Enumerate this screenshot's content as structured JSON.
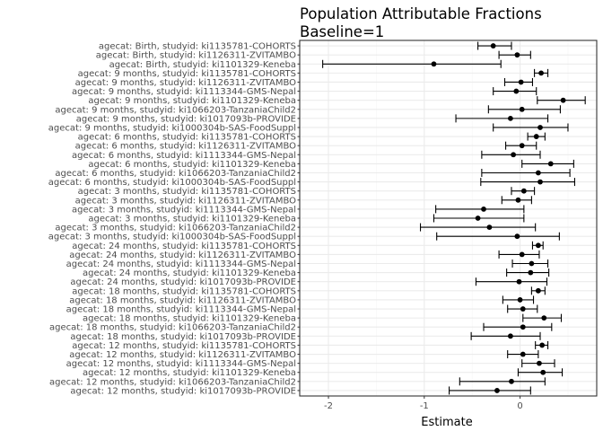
{
  "chart_data": {
    "type": "scatter",
    "style": "forest-plot with horizontal confidence intervals",
    "title": "Population Attributable Fractions",
    "subtitle": "Baseline=1",
    "xlabel": "Estimate",
    "ylabel": "",
    "xlim": [
      -2.3,
      0.8
    ],
    "xticks": [
      -2,
      -1,
      0
    ],
    "grid": true,
    "colors": {
      "point": "#000000",
      "panel_border": "#333333",
      "grid_major": "#ebebeb",
      "grid_minor": "#f5f5f5"
    },
    "rows": [
      {
        "label": "agecat: Birth, studyid: ki1135781-COHORTS",
        "est": -0.28,
        "lo": -0.44,
        "hi": -0.09
      },
      {
        "label": "agecat: Birth, studyid: ki1126311-ZVITAMBO",
        "est": -0.03,
        "lo": -0.22,
        "hi": 0.11
      },
      {
        "label": "agecat: Birth, studyid: ki1101329-Keneba",
        "est": -0.9,
        "lo": -2.06,
        "hi": -0.2
      },
      {
        "label": "agecat: 9 months, studyid: ki1135781-COHORTS",
        "est": 0.22,
        "lo": 0.15,
        "hi": 0.29
      },
      {
        "label": "agecat: 9 months, studyid: ki1126311-ZVITAMBO",
        "est": 0.01,
        "lo": -0.16,
        "hi": 0.13
      },
      {
        "label": "agecat: 9 months, studyid: ki1113344-GMS-Nepal",
        "est": -0.04,
        "lo": -0.28,
        "hi": 0.17
      },
      {
        "label": "agecat: 9 months, studyid: ki1101329-Keneba",
        "est": 0.45,
        "lo": 0.18,
        "hi": 0.68
      },
      {
        "label": "agecat: 9 months, studyid: ki1066203-TanzaniaChild2",
        "est": 0.02,
        "lo": -0.33,
        "hi": 0.42
      },
      {
        "label": "agecat: 9 months, studyid: ki1017093b-PROVIDE",
        "est": -0.1,
        "lo": -0.67,
        "hi": 0.29
      },
      {
        "label": "agecat: 9 months, studyid: ki1000304b-SAS-FoodSuppl",
        "est": 0.21,
        "lo": -0.28,
        "hi": 0.5
      },
      {
        "label": "agecat: 6 months, studyid: ki1135781-COHORTS",
        "est": 0.17,
        "lo": 0.08,
        "hi": 0.26
      },
      {
        "label": "agecat: 6 months, studyid: ki1126311-ZVITAMBO",
        "est": 0.02,
        "lo": -0.15,
        "hi": 0.17
      },
      {
        "label": "agecat: 6 months, studyid: ki1113344-GMS-Nepal",
        "est": -0.07,
        "lo": -0.4,
        "hi": 0.21
      },
      {
        "label": "agecat: 6 months, studyid: ki1101329-Keneba",
        "est": 0.32,
        "lo": 0.02,
        "hi": 0.56
      },
      {
        "label": "agecat: 6 months, studyid: ki1066203-TanzaniaChild2",
        "est": 0.19,
        "lo": -0.4,
        "hi": 0.52
      },
      {
        "label": "agecat: 6 months, studyid: ki1000304b-SAS-FoodSuppl",
        "est": 0.21,
        "lo": -0.41,
        "hi": 0.57
      },
      {
        "label": "agecat: 3 months, studyid: ki1135781-COHORTS",
        "est": 0.04,
        "lo": -0.09,
        "hi": 0.15
      },
      {
        "label": "agecat: 3 months, studyid: ki1126311-ZVITAMBO",
        "est": -0.02,
        "lo": -0.19,
        "hi": 0.12
      },
      {
        "label": "agecat: 3 months, studyid: ki1113344-GMS-Nepal",
        "est": -0.38,
        "lo": -0.88,
        "hi": 0.04
      },
      {
        "label": "agecat: 3 months, studyid: ki1101329-Keneba",
        "est": -0.44,
        "lo": -0.9,
        "hi": 0.04
      },
      {
        "label": "agecat: 3 months, studyid: ki1066203-TanzaniaChild2",
        "est": -0.32,
        "lo": -1.04,
        "hi": 0.16
      },
      {
        "label": "agecat: 3 months, studyid: ki1000304b-SAS-FoodSuppl",
        "est": -0.03,
        "lo": -0.87,
        "hi": 0.41
      },
      {
        "label": "agecat: 24 months, studyid: ki1135781-COHORTS",
        "est": 0.19,
        "lo": 0.13,
        "hi": 0.24
      },
      {
        "label": "agecat: 24 months, studyid: ki1126311-ZVITAMBO",
        "est": 0.02,
        "lo": -0.22,
        "hi": 0.2
      },
      {
        "label": "agecat: 24 months, studyid: ki1113344-GMS-Nepal",
        "est": 0.12,
        "lo": -0.08,
        "hi": 0.29
      },
      {
        "label": "agecat: 24 months, studyid: ki1101329-Keneba",
        "est": 0.11,
        "lo": -0.14,
        "hi": 0.3
      },
      {
        "label": "agecat: 24 months, studyid: ki1017093b-PROVIDE",
        "est": -0.01,
        "lo": -0.46,
        "hi": 0.28
      },
      {
        "label": "agecat: 18 months, studyid: ki1135781-COHORTS",
        "est": 0.19,
        "lo": 0.12,
        "hi": 0.26
      },
      {
        "label": "agecat: 18 months, studyid: ki1126311-ZVITAMBO",
        "est": 0.0,
        "lo": -0.18,
        "hi": 0.14
      },
      {
        "label": "agecat: 18 months, studyid: ki1113344-GMS-Nepal",
        "est": 0.03,
        "lo": -0.13,
        "hi": 0.18
      },
      {
        "label": "agecat: 18 months, studyid: ki1101329-Keneba",
        "est": 0.25,
        "lo": 0.03,
        "hi": 0.43
      },
      {
        "label": "agecat: 18 months, studyid: ki1066203-TanzaniaChild2",
        "est": 0.03,
        "lo": -0.38,
        "hi": 0.33
      },
      {
        "label": "agecat: 18 months, studyid: ki1017093b-PROVIDE",
        "est": -0.1,
        "lo": -0.51,
        "hi": 0.21
      },
      {
        "label": "agecat: 12 months, studyid: ki1135781-COHORTS",
        "est": 0.23,
        "lo": 0.16,
        "hi": 0.29
      },
      {
        "label": "agecat: 12 months, studyid: ki1126311-ZVITAMBO",
        "est": 0.03,
        "lo": -0.13,
        "hi": 0.19
      },
      {
        "label": "agecat: 12 months, studyid: ki1113344-GMS-Nepal",
        "est": 0.2,
        "lo": 0.02,
        "hi": 0.36
      },
      {
        "label": "agecat: 12 months, studyid: ki1101329-Keneba",
        "est": 0.24,
        "lo": -0.02,
        "hi": 0.44
      },
      {
        "label": "agecat: 12 months, studyid: ki1066203-TanzaniaChild2",
        "est": -0.09,
        "lo": -0.63,
        "hi": 0.26
      },
      {
        "label": "agecat: 12 months, studyid: ki1017093b-PROVIDE",
        "est": -0.24,
        "lo": -0.74,
        "hi": 0.11
      }
    ]
  }
}
